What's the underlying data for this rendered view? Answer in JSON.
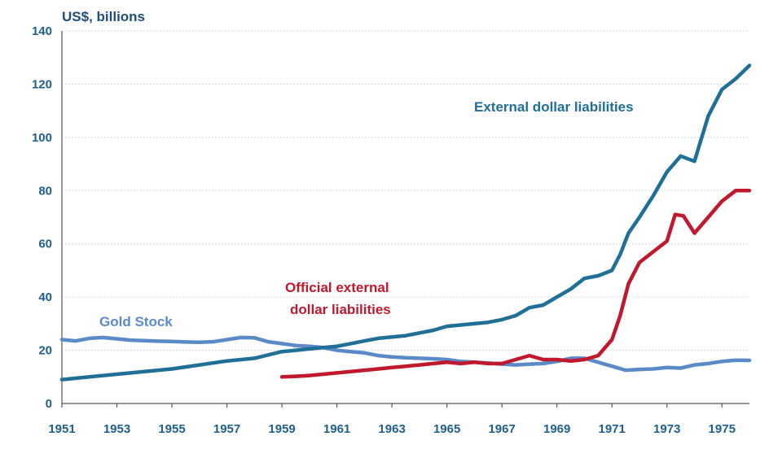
{
  "chart_data": {
    "type": "line",
    "title": "",
    "ylabel": "US$, billions",
    "xlabel": "",
    "xlim": [
      1951,
      1976
    ],
    "ylim": [
      0,
      140
    ],
    "y_ticks": [
      "0",
      "20",
      "40",
      "60",
      "80",
      "100",
      "120",
      "140"
    ],
    "x_ticks": [
      "1951",
      "1953",
      "1955",
      "1957",
      "1959",
      "1961",
      "1963",
      "1965",
      "1967",
      "1969",
      "1971",
      "1973",
      "1975"
    ],
    "grid": true,
    "legend": "none",
    "series": [
      {
        "name": "Gold Stock",
        "color": "#5b8ac9",
        "x": [
          1951.0,
          1951.5,
          1952.0,
          1952.5,
          1953.0,
          1953.5,
          1954.0,
          1954.5,
          1955.0,
          1955.5,
          1956.0,
          1956.5,
          1957.0,
          1957.5,
          1958.0,
          1958.5,
          1959.0,
          1959.5,
          1960.0,
          1960.5,
          1961.0,
          1961.5,
          1962.0,
          1962.5,
          1963.0,
          1963.5,
          1964.0,
          1964.5,
          1965.0,
          1965.5,
          1966.0,
          1966.5,
          1967.0,
          1967.5,
          1968.0,
          1968.5,
          1969.0,
          1969.5,
          1970.0,
          1970.5,
          1971.0,
          1971.5,
          1972.0,
          1972.5,
          1973.0,
          1973.5,
          1974.0,
          1974.5,
          1975.0,
          1975.5,
          1976.0
        ],
        "y": [
          24.0,
          23.5,
          24.5,
          24.8,
          24.3,
          23.8,
          23.6,
          23.4,
          23.3,
          23.1,
          23.0,
          23.2,
          24.0,
          24.8,
          24.7,
          23.2,
          22.5,
          21.8,
          21.5,
          21.0,
          20.0,
          19.5,
          19.0,
          18.0,
          17.5,
          17.2,
          17.0,
          16.8,
          16.5,
          15.8,
          15.5,
          15.2,
          14.8,
          14.5,
          14.8,
          15.0,
          15.8,
          17.0,
          17.0,
          15.5,
          14.0,
          12.5,
          12.8,
          13.0,
          13.5,
          13.3,
          14.5,
          15.0,
          15.8,
          16.3,
          16.2
        ]
      },
      {
        "name": "External dollar liabilities",
        "color": "#1f6f96",
        "x": [
          1951.0,
          1952.0,
          1953.0,
          1954.0,
          1955.0,
          1956.0,
          1957.0,
          1958.0,
          1959.0,
          1959.5,
          1960.0,
          1960.5,
          1961.0,
          1961.5,
          1962.0,
          1962.5,
          1963.0,
          1963.5,
          1964.0,
          1964.5,
          1965.0,
          1965.5,
          1966.0,
          1966.5,
          1967.0,
          1967.5,
          1968.0,
          1968.5,
          1969.0,
          1969.5,
          1970.0,
          1970.5,
          1971.0,
          1971.3,
          1971.6,
          1972.0,
          1972.5,
          1973.0,
          1973.5,
          1974.0,
          1974.5,
          1975.0,
          1975.5,
          1976.0
        ],
        "y": [
          9.0,
          10.0,
          11.0,
          12.0,
          13.0,
          14.5,
          16.0,
          17.0,
          19.5,
          20.0,
          20.5,
          21.0,
          21.5,
          22.5,
          23.5,
          24.5,
          25.0,
          25.5,
          26.5,
          27.5,
          29.0,
          29.5,
          30.0,
          30.5,
          31.5,
          33.0,
          36.0,
          37.0,
          40.0,
          43.0,
          47.0,
          48.0,
          50.0,
          56.0,
          64.0,
          70.0,
          78.0,
          87.0,
          93.0,
          91.0,
          108.0,
          118.0,
          122.0,
          127.0
        ]
      },
      {
        "name": "Official external dollar liabilities",
        "color": "#c0182c",
        "x": [
          1959.0,
          1959.5,
          1960.0,
          1960.5,
          1961.0,
          1961.5,
          1962.0,
          1962.5,
          1963.0,
          1963.5,
          1964.0,
          1964.5,
          1965.0,
          1965.5,
          1966.0,
          1966.5,
          1967.0,
          1967.5,
          1968.0,
          1968.5,
          1969.0,
          1969.5,
          1970.0,
          1970.5,
          1971.0,
          1971.3,
          1971.6,
          1972.0,
          1972.5,
          1973.0,
          1973.3,
          1973.6,
          1974.0,
          1974.5,
          1975.0,
          1975.5,
          1976.0
        ],
        "y": [
          10.0,
          10.2,
          10.5,
          11.0,
          11.5,
          12.0,
          12.5,
          13.0,
          13.5,
          14.0,
          14.5,
          15.0,
          15.5,
          15.0,
          15.5,
          15.0,
          15.0,
          16.5,
          18.0,
          16.5,
          16.5,
          16.0,
          16.5,
          18.0,
          24.0,
          33.0,
          45.0,
          53.0,
          57.0,
          61.0,
          71.0,
          70.5,
          64.0,
          70.0,
          76.0,
          80.0,
          80.0
        ]
      }
    ],
    "annotations": [
      {
        "text": "External dollar liabilities",
        "series": "External dollar liabilities"
      },
      {
        "text_lines": [
          "Official external",
          "dollar liabilities"
        ],
        "series": "Official external dollar liabilities"
      },
      {
        "text": "Gold Stock",
        "series": "Gold Stock"
      }
    ]
  }
}
